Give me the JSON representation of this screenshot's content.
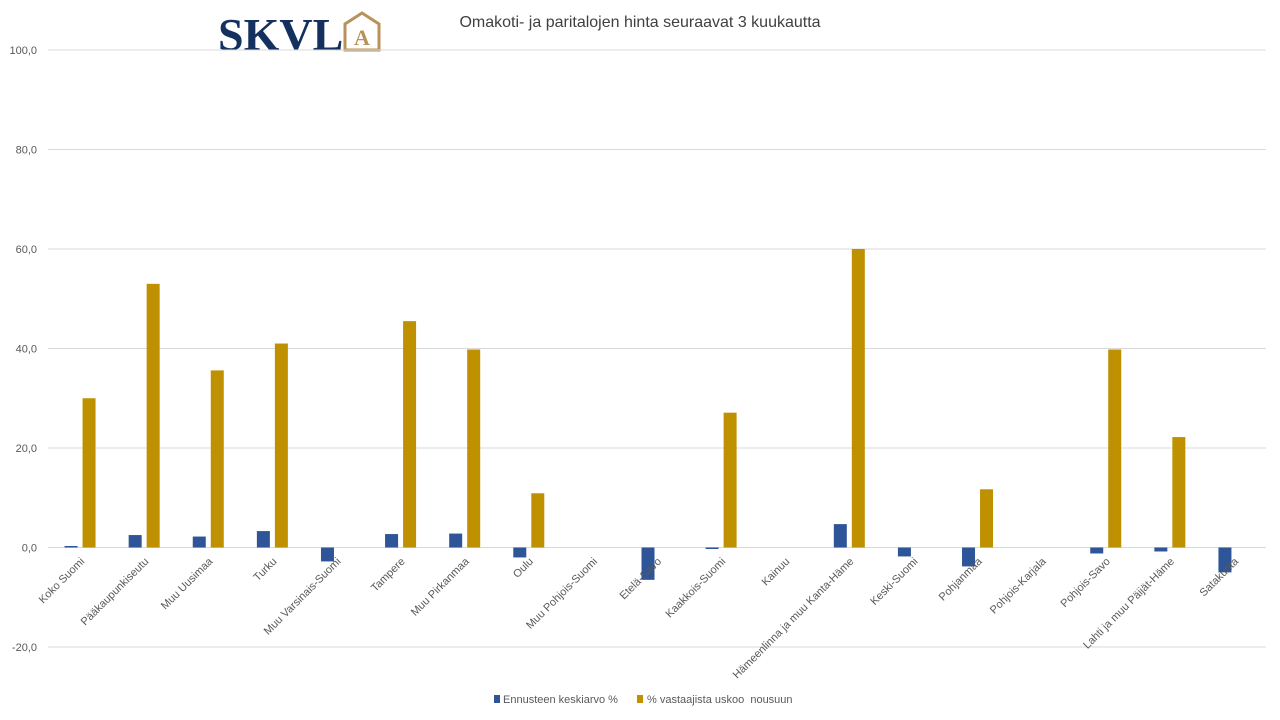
{
  "logo": {
    "text": "SKVL",
    "mark_letter": "A",
    "text_color": "#14305e",
    "mark_color": "#b8925a"
  },
  "colors": {
    "series_1": "#2e5597",
    "series_2": "#bf9000",
    "gridline": "#d9d9d9",
    "text": "#595959"
  },
  "chart_data": {
    "type": "bar",
    "title": "Omakoti- ja paritalojen hinta seuraavat 3 kuukautta",
    "xlabel": "",
    "ylabel": "",
    "ylim": [
      -20,
      100
    ],
    "yticks": [
      -20,
      0,
      20,
      40,
      60,
      80,
      100
    ],
    "ytick_labels": [
      "-20,0",
      "0,0",
      "20,0",
      "40,0",
      "60,0",
      "80,0",
      "100,0"
    ],
    "grid": true,
    "legend_position": "bottom",
    "categories": [
      "Koko Suomi",
      "Pääkaupunkiseutu",
      "Muu Uusimaa",
      "Turku",
      "Muu Varsinais-Suomi",
      "Tampere",
      "Muu Pirkanmaa",
      "Oulu",
      "Muu Pohjois-Suomi",
      "Etelä-Savo",
      "Kaakkois-Suomi",
      "Kainuu",
      "Hämeenlinna ja muu Kanta-Häme",
      "Keski-Suomi",
      "Pohjanmaa",
      "Pohjois-Karjala",
      "Pohjois-Savo",
      "Lahti ja muu Päijät-Häme",
      "Satakunta"
    ],
    "series": [
      {
        "name": "Ennusteen keskiarvo %",
        "values": [
          0.3,
          2.5,
          2.2,
          3.3,
          -2.8,
          2.7,
          2.8,
          -2.0,
          0,
          -6.5,
          -0.3,
          0,
          4.7,
          -1.8,
          -3.8,
          0,
          -1.2,
          -0.8,
          -5.0
        ]
      },
      {
        "name": "% vastaajista uskoo  nousuun",
        "values": [
          30.0,
          53.0,
          35.6,
          41.0,
          0,
          45.5,
          39.8,
          10.9,
          0,
          0,
          27.1,
          0,
          60.0,
          0,
          11.7,
          0,
          39.8,
          22.2,
          0
        ]
      }
    ]
  }
}
